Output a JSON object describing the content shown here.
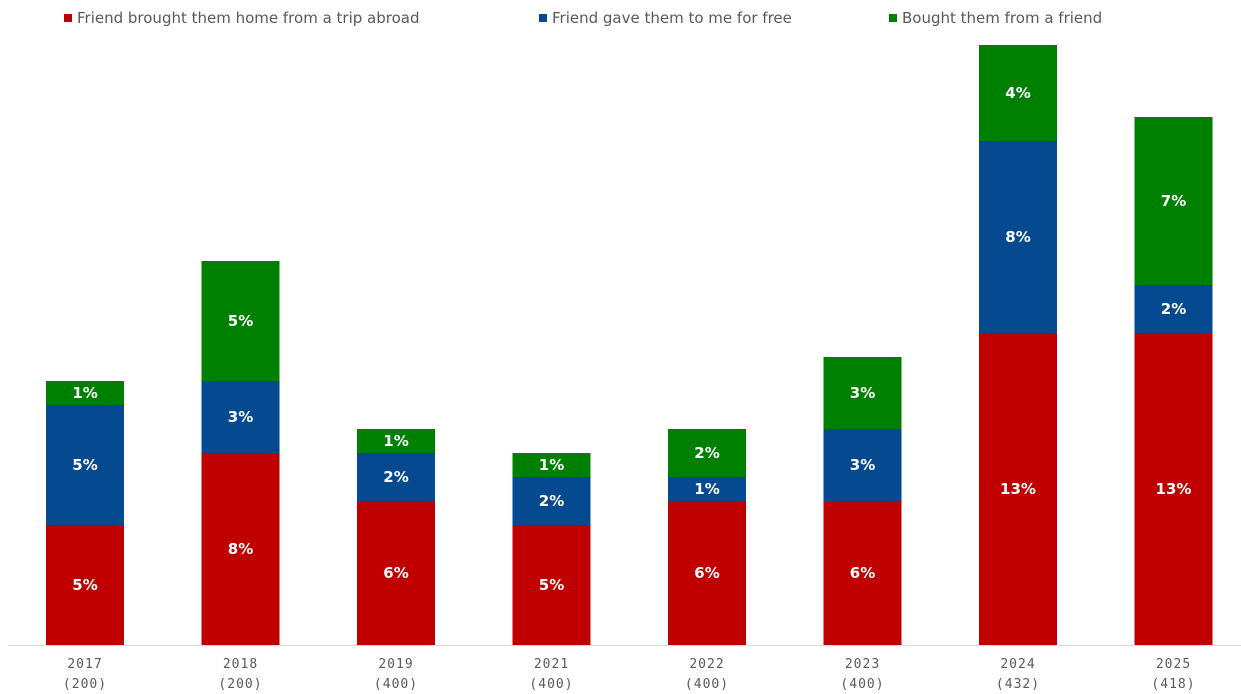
{
  "chart_data": {
    "type": "bar",
    "stacked": true,
    "title": "",
    "xlabel": "",
    "ylabel": "",
    "categories": [
      "2017",
      "2018",
      "2019",
      "2021",
      "2022",
      "2023",
      "2024",
      "2025"
    ],
    "base_sizes": [
      "(200)",
      "(200)",
      "(400)",
      "(400)",
      "(400)",
      "(400)",
      "(432)",
      "(418)"
    ],
    "series": [
      {
        "name": "Friend brought them home from a trip abroad",
        "color": "#c00000",
        "values": [
          5,
          8,
          6,
          5,
          6,
          6,
          13,
          13
        ]
      },
      {
        "name": "Friend gave them to me for free",
        "color": "#054a91",
        "values": [
          5,
          3,
          2,
          2,
          1,
          3,
          8,
          2
        ]
      },
      {
        "name": "Bought them from a friend",
        "color": "#008000",
        "values": [
          1,
          5,
          1,
          1,
          2,
          3,
          4,
          7
        ]
      }
    ],
    "value_suffix": "%",
    "ylim": [
      0,
      25
    ],
    "grid": false,
    "legend_position": "top-left"
  }
}
